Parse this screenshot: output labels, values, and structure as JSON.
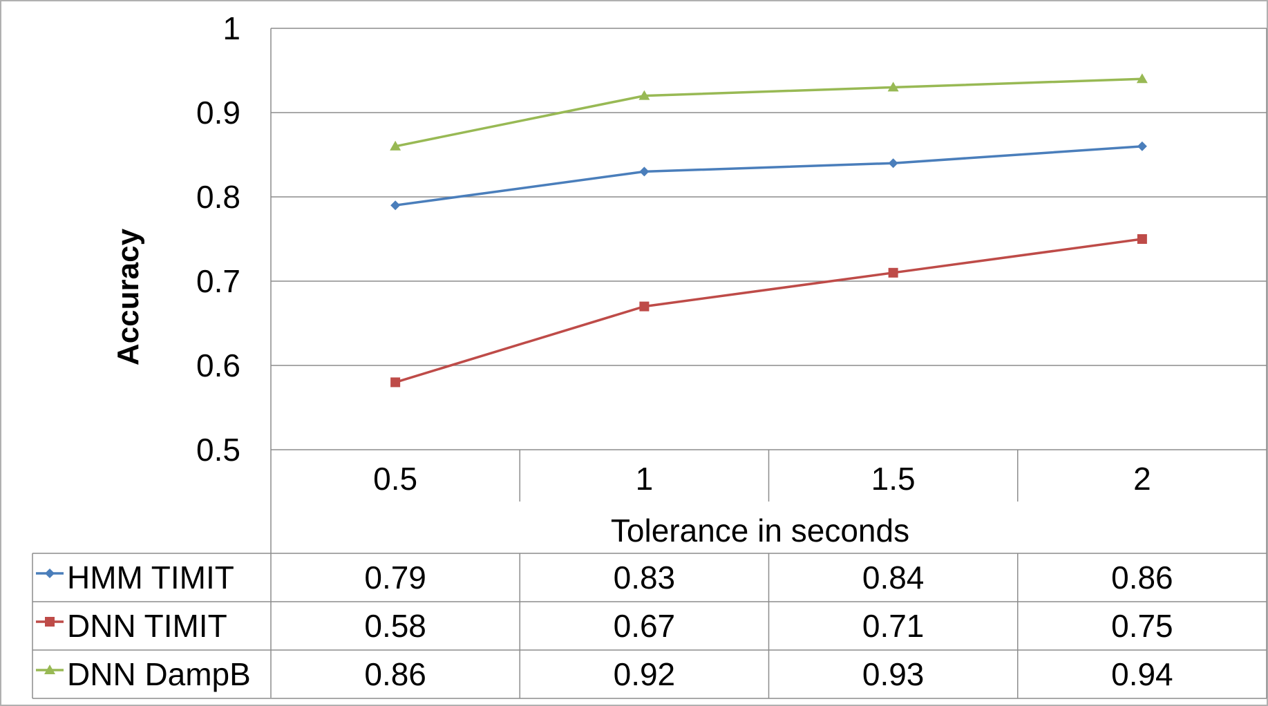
{
  "chart_data": {
    "type": "line",
    "categories": [
      "0.5",
      "1",
      "1.5",
      "2"
    ],
    "series": [
      {
        "name": "HMM TIMIT",
        "values": [
          0.79,
          0.83,
          0.84,
          0.86
        ],
        "color": "#4a7ebb",
        "marker": "diamond"
      },
      {
        "name": "DNN TIMIT",
        "values": [
          0.58,
          0.67,
          0.71,
          0.75
        ],
        "color": "#be4b48",
        "marker": "square"
      },
      {
        "name": "DNN DampB",
        "values": [
          0.86,
          0.92,
          0.93,
          0.94
        ],
        "color": "#98b954",
        "marker": "triangle"
      }
    ],
    "yticks": [
      "0.5",
      "0.6",
      "0.7",
      "0.8",
      "0.9",
      "1"
    ],
    "ylim": [
      0.5,
      1.0
    ],
    "xlabel": "Tolerance in seconds",
    "ylabel": "Accuracy",
    "table": {
      "HMM TIMIT": [
        "0.79",
        "0.83",
        "0.84",
        "0.86"
      ],
      "DNN TIMIT": [
        "0.58",
        "0.67",
        "0.71",
        "0.75"
      ],
      "DNN DampB": [
        "0.86",
        "0.92",
        "0.93",
        "0.94"
      ]
    },
    "grid": true,
    "legend": "data-table"
  }
}
